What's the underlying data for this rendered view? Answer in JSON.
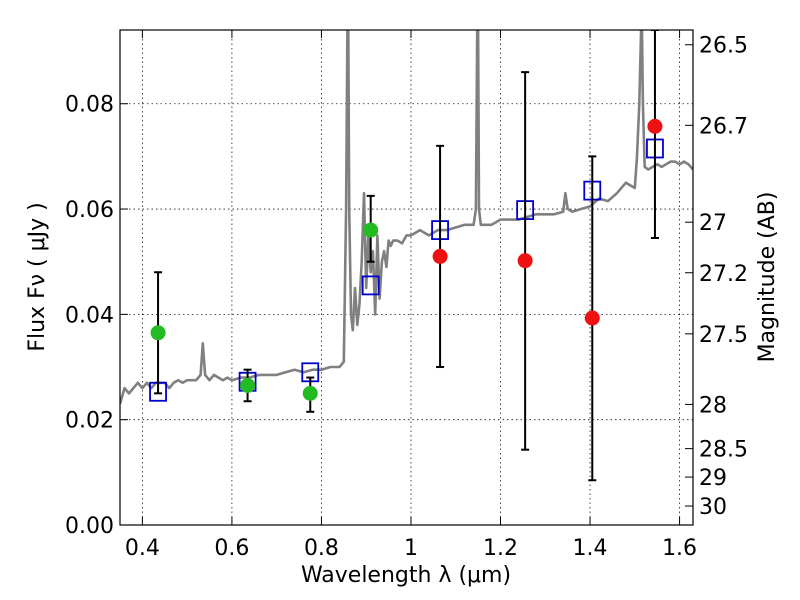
{
  "chart_data": {
    "type": "scatter",
    "xlabel": "Wavelength  λ (μm)",
    "ylabel_left": "Flux  Fν  ( μJy )",
    "ylabel_right": "Magnitude (AB)",
    "xlim": [
      0.35,
      1.63
    ],
    "ylim": [
      0.0,
      0.094
    ],
    "x_ticks": [
      0.4,
      0.6,
      0.8,
      1.0,
      1.2,
      1.4,
      1.6
    ],
    "x_tick_labels": [
      "0.4",
      "0.6",
      "0.8",
      "1",
      "1.2",
      "1.4",
      "1.6"
    ],
    "y_ticks": [
      0.0,
      0.02,
      0.04,
      0.06,
      0.08
    ],
    "y_tick_labels": [
      "0.00",
      "0.02",
      "0.04",
      "0.06",
      "0.08"
    ],
    "right_ticks": [
      {
        "label": "26.5",
        "flux": 0.0912
      },
      {
        "label": "26.7",
        "flux": 0.0759
      },
      {
        "label": "27",
        "flux": 0.0575
      },
      {
        "label": "27.2",
        "flux": 0.0479
      },
      {
        "label": "27.5",
        "flux": 0.0363
      },
      {
        "label": "28",
        "flux": 0.0229
      },
      {
        "label": "28.5",
        "flux": 0.0145
      },
      {
        "label": "29",
        "flux": 0.0091
      },
      {
        "label": "30",
        "flux": 0.0036
      }
    ],
    "grid": true,
    "series": [
      {
        "kind": "errorbar-points",
        "color": "#22bb22",
        "points": [
          {
            "x": 0.435,
            "y": 0.0365,
            "yerr_low": 0.025,
            "yerr_high": 0.048
          },
          {
            "x": 0.635,
            "y": 0.0265,
            "yerr_low": 0.0235,
            "yerr_high": 0.0295
          },
          {
            "x": 0.775,
            "y": 0.025,
            "yerr_low": 0.0215,
            "yerr_high": 0.028
          },
          {
            "x": 0.91,
            "y": 0.056,
            "yerr_low": 0.05,
            "yerr_high": 0.0625
          }
        ]
      },
      {
        "kind": "errorbar-points",
        "color": "#ee1111",
        "points": [
          {
            "x": 1.065,
            "y": 0.051,
            "yerr_low": 0.03,
            "yerr_high": 0.072
          },
          {
            "x": 1.255,
            "y": 0.0502,
            "yerr_low": 0.0143,
            "yerr_high": 0.086
          },
          {
            "x": 1.405,
            "y": 0.0393,
            "yerr_low": 0.0085,
            "yerr_high": 0.07
          },
          {
            "x": 1.545,
            "y": 0.0757,
            "yerr_low": 0.0545,
            "yerr_high": 0.094
          }
        ]
      },
      {
        "kind": "model-squares",
        "color": "#0000cc",
        "points": [
          {
            "x": 0.435,
            "y": 0.0253
          },
          {
            "x": 0.635,
            "y": 0.0272
          },
          {
            "x": 0.775,
            "y": 0.029
          },
          {
            "x": 0.91,
            "y": 0.0455
          },
          {
            "x": 1.065,
            "y": 0.056
          },
          {
            "x": 1.255,
            "y": 0.0598
          },
          {
            "x": 1.405,
            "y": 0.0635
          },
          {
            "x": 1.545,
            "y": 0.0715
          }
        ]
      },
      {
        "kind": "spectrum-line",
        "color": "#808080",
        "x": [
          0.35,
          0.36,
          0.37,
          0.38,
          0.39,
          0.4,
          0.41,
          0.42,
          0.43,
          0.44,
          0.45,
          0.46,
          0.47,
          0.48,
          0.49,
          0.5,
          0.51,
          0.52,
          0.53,
          0.535,
          0.54,
          0.55,
          0.56,
          0.57,
          0.58,
          0.59,
          0.6,
          0.62,
          0.64,
          0.66,
          0.68,
          0.7,
          0.72,
          0.74,
          0.76,
          0.78,
          0.8,
          0.82,
          0.84,
          0.85,
          0.855,
          0.858,
          0.86,
          0.862,
          0.866,
          0.87,
          0.875,
          0.88,
          0.885,
          0.89,
          0.895,
          0.9,
          0.905,
          0.91,
          0.915,
          0.92,
          0.925,
          0.93,
          0.935,
          0.94,
          0.945,
          0.95,
          0.955,
          0.96,
          0.97,
          0.98,
          0.99,
          1.0,
          1.01,
          1.02,
          1.04,
          1.06,
          1.08,
          1.1,
          1.12,
          1.14,
          1.145,
          1.148,
          1.15,
          1.152,
          1.156,
          1.16,
          1.18,
          1.2,
          1.22,
          1.24,
          1.26,
          1.28,
          1.3,
          1.32,
          1.34,
          1.345,
          1.35,
          1.36,
          1.38,
          1.4,
          1.42,
          1.44,
          1.46,
          1.48,
          1.5,
          1.505,
          1.51,
          1.514,
          1.516,
          1.518,
          1.522,
          1.53,
          1.54,
          1.55,
          1.56,
          1.57,
          1.58,
          1.59,
          1.6,
          1.61,
          1.62,
          1.63
        ],
        "y": [
          0.023,
          0.026,
          0.025,
          0.026,
          0.027,
          0.026,
          0.027,
          0.026,
          0.027,
          0.027,
          0.027,
          0.026,
          0.027,
          0.0275,
          0.027,
          0.0275,
          0.0275,
          0.0275,
          0.0285,
          0.0345,
          0.0285,
          0.0275,
          0.0285,
          0.028,
          0.0275,
          0.028,
          0.0275,
          0.028,
          0.028,
          0.0285,
          0.0285,
          0.0285,
          0.029,
          0.0295,
          0.029,
          0.0295,
          0.0295,
          0.03,
          0.03,
          0.031,
          0.06,
          0.094,
          0.094,
          0.06,
          0.04,
          0.037,
          0.045,
          0.038,
          0.042,
          0.05,
          0.063,
          0.045,
          0.055,
          0.048,
          0.052,
          0.04,
          0.055,
          0.043,
          0.05,
          0.052,
          0.049,
          0.054,
          0.053,
          0.054,
          0.054,
          0.0535,
          0.055,
          0.055,
          0.0555,
          0.056,
          0.055,
          0.056,
          0.056,
          0.0565,
          0.057,
          0.057,
          0.06,
          0.094,
          0.094,
          0.06,
          0.057,
          0.057,
          0.057,
          0.058,
          0.058,
          0.058,
          0.0585,
          0.059,
          0.059,
          0.059,
          0.0595,
          0.063,
          0.06,
          0.0595,
          0.06,
          0.0605,
          0.062,
          0.0615,
          0.063,
          0.065,
          0.064,
          0.07,
          0.08,
          0.094,
          0.094,
          0.08,
          0.068,
          0.0675,
          0.068,
          0.0685,
          0.068,
          0.0685,
          0.069,
          0.069,
          0.0685,
          0.069,
          0.0685,
          0.0675
        ]
      }
    ]
  }
}
